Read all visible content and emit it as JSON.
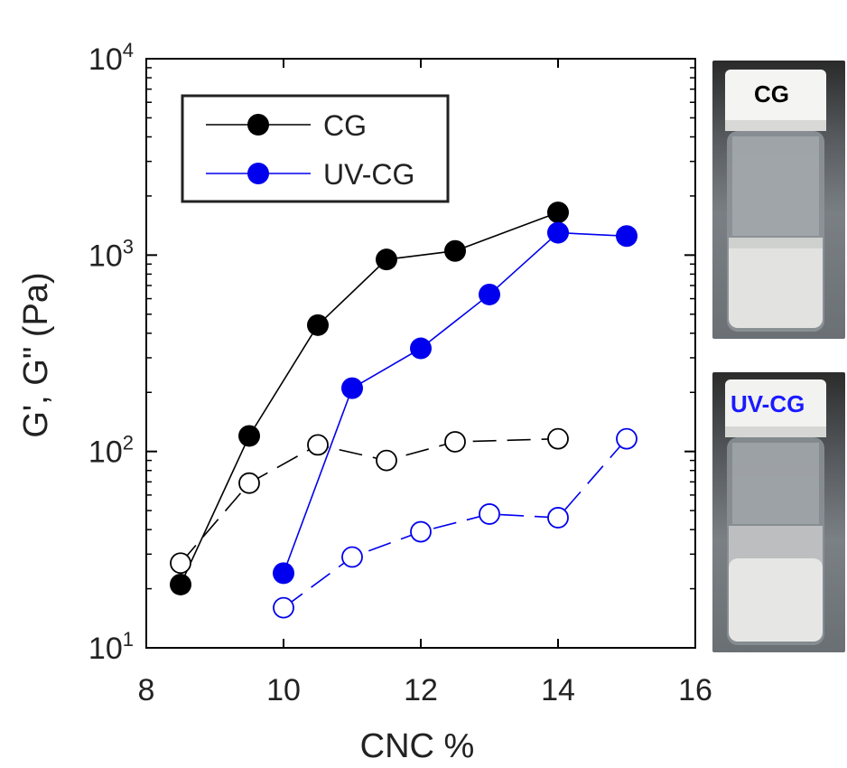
{
  "chart_data": {
    "type": "scatter",
    "xlabel": "CNC %",
    "ylabel": "G', G\" (Pa)",
    "xlim": [
      8,
      16
    ],
    "ylim_log10": [
      1,
      4
    ],
    "yscale": "log",
    "xticks": [
      8,
      10,
      12,
      14,
      16
    ],
    "xtick_labels": [
      "8",
      "10",
      "12",
      "14",
      "16"
    ],
    "ytick_exponents": [
      1,
      2,
      3,
      4
    ],
    "ytick_base": "10",
    "ytick_exps": [
      "1",
      "2",
      "3",
      "4"
    ],
    "legend_position": "top-left",
    "series": [
      {
        "name": "CG",
        "label": "CG",
        "shown_in_legend": true,
        "modulus": "G'",
        "color": "#000000",
        "marker": "filled-circle",
        "line": "solid",
        "x": [
          8.5,
          9.5,
          10.5,
          11.5,
          12.5,
          14.0
        ],
        "y": [
          21,
          120,
          440,
          950,
          1050,
          1650
        ]
      },
      {
        "name": "UV-CG",
        "label": "UV-CG",
        "shown_in_legend": true,
        "modulus": "G'",
        "color": "#0000ee",
        "marker": "filled-circle",
        "line": "solid",
        "x": [
          10.0,
          11.0,
          12.0,
          13.0,
          14.0,
          15.0
        ],
        "y": [
          24,
          210,
          335,
          630,
          1300,
          1250
        ]
      },
      {
        "name": "CG G''",
        "shown_in_legend": false,
        "modulus": "G\"",
        "color": "#000000",
        "marker": "open-circle",
        "line": "dashed",
        "x": [
          8.5,
          9.5,
          10.5,
          11.5,
          12.5,
          14.0
        ],
        "y": [
          27,
          69,
          108,
          90,
          112,
          116
        ]
      },
      {
        "name": "UV-CG G''",
        "shown_in_legend": false,
        "modulus": "G\"",
        "color": "#0000ee",
        "marker": "open-circle",
        "line": "dashed",
        "x": [
          10.0,
          11.0,
          12.0,
          13.0,
          14.0,
          15.0
        ],
        "y": [
          16,
          29,
          39,
          48,
          46,
          116
        ]
      }
    ]
  },
  "photos": {
    "top_label": "CG",
    "bottom_label": "UV-CG"
  },
  "colors": {
    "cg": "#000000",
    "uvcg": "#0000ee",
    "uvcg_label": "#1a1aff"
  }
}
